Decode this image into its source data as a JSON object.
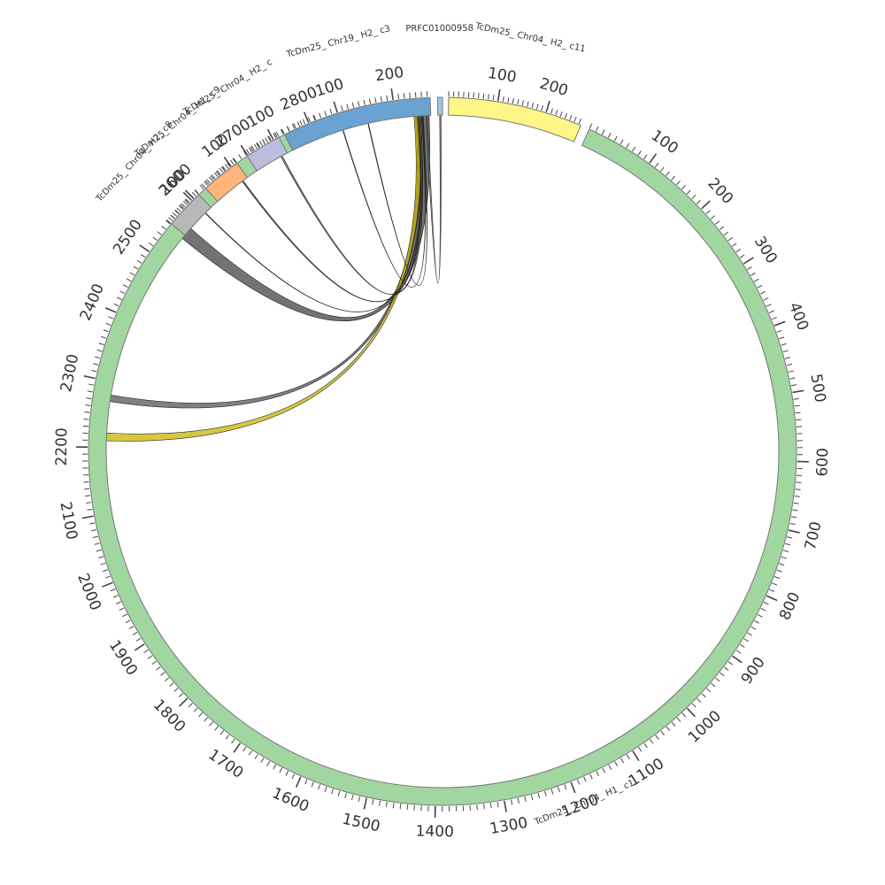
{
  "diagram": {
    "type": "circos",
    "segments": [
      {
        "id": "c1",
        "label": "TcDm25_ Chr04_ H1_ c1",
        "length": 2815,
        "color": "#a1d6a0"
      },
      {
        "id": "c5",
        "label": "TcDm25_ Chr04_ H2_ c",
        "length": 120,
        "color": "#bcbddc"
      },
      {
        "id": "c9",
        "label": "TcDm25_ Chr04_ H2_ c9",
        "length": 120,
        "color": "#fdb57c"
      },
      {
        "id": "c8",
        "label": "TcDm25_ Chr04_ H2_ c8",
        "length": 130,
        "color": "#b8b8b8"
      },
      {
        "id": "c3",
        "label": "TcDm25_ Chr19_ H2_ c3",
        "length": 265,
        "color": "#6aa3d1"
      },
      {
        "id": "prfc",
        "label": "PRFC01000958",
        "length": 10,
        "color": "#9ecae1"
      },
      {
        "id": "c11",
        "label": "TcDm25_ Chr04_ H2_ c11",
        "length": 275,
        "color": "#fef686"
      }
    ],
    "links": [
      {
        "from": [
          "c1",
          2545,
          2565
        ],
        "to": [
          "c3",
          238,
          262
        ],
        "color": "#444444"
      },
      {
        "from": [
          "c1",
          2270,
          2280
        ],
        "to": [
          "c3",
          236,
          246
        ],
        "color": "#555555"
      },
      {
        "from": [
          "c1",
          2210,
          2222
        ],
        "to": [
          "c3",
          234,
          244
        ],
        "color": "#c8b400"
      },
      {
        "from": [
          "c5",
          95,
          100
        ],
        "to": [
          "c3",
          240,
          245
        ],
        "color": "#3f7f3f"
      },
      {
        "from": [
          "c9",
          100,
          104
        ],
        "to": [
          "c3",
          242,
          246
        ],
        "color": "#333333"
      },
      {
        "from": [
          "c8",
          102,
          104
        ],
        "to": [
          "c3",
          244,
          246
        ],
        "color": "#f07020"
      },
      {
        "from": [
          "c3",
          100,
          101
        ],
        "to": [
          "c3",
          248,
          249
        ],
        "color": "#3a5a2a"
      },
      {
        "from": [
          "c3",
          148,
          149
        ],
        "to": [
          "c3",
          250,
          251
        ],
        "color": "#333333"
      },
      {
        "from": [
          "c3",
          256,
          259
        ],
        "to": [
          "prfc",
          4,
          7
        ],
        "color": "#666666"
      }
    ]
  }
}
